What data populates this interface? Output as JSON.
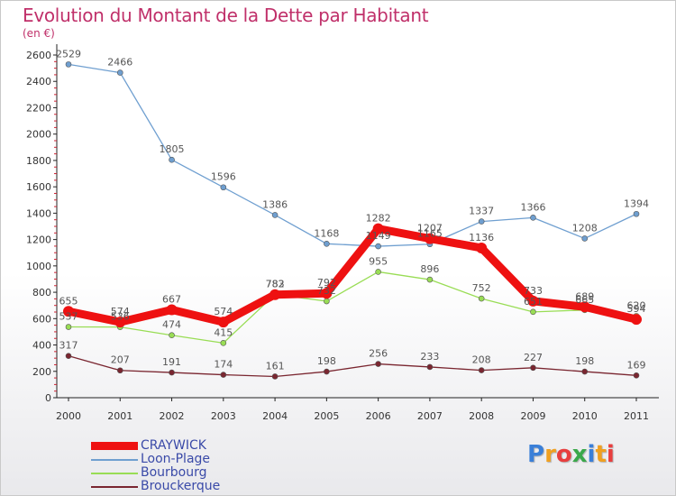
{
  "title": "Evolution du Montant de la Dette par Habitant",
  "subtitle": "(en €)",
  "chart_data": {
    "type": "line",
    "title": "Evolution du Montant de la Dette par Habitant",
    "subtitle": "(en €)",
    "xlabel": "",
    "ylabel": "",
    "x": [
      "2000",
      "2001",
      "2002",
      "2003",
      "2004",
      "2005",
      "2006",
      "2007",
      "2008",
      "2009",
      "2010",
      "2011"
    ],
    "ylim": [
      0,
      2600
    ],
    "yticks": [
      0,
      200,
      400,
      600,
      800,
      1000,
      1200,
      1400,
      1600,
      1800,
      2000,
      2200,
      2400,
      2600
    ],
    "grid": false,
    "legend_position": "bottom-left",
    "series": [
      {
        "name": "CRAYWICK",
        "color": "#ee1111",
        "values": [
          655,
          574,
          667,
          574,
          782,
          792,
          1282,
          1207,
          1136,
          733,
          689,
          594
        ]
      },
      {
        "name": "Loon-Plage",
        "color": "#6f9fd0",
        "values": [
          2529,
          2466,
          1805,
          1596,
          1386,
          1168,
          1149,
          1165,
          1337,
          1366,
          1208,
          1394
        ]
      },
      {
        "name": "Bourbourg",
        "color": "#99dd55",
        "values": [
          537,
          536,
          474,
          415,
          783,
          732,
          955,
          896,
          752,
          651,
          665,
          620
        ]
      },
      {
        "name": "Brouckerque",
        "color": "#7a2630",
        "values": [
          317,
          207,
          191,
          174,
          161,
          198,
          256,
          233,
          208,
          227,
          198,
          169
        ]
      }
    ]
  },
  "logo": {
    "text": "Proxiti",
    "letters": [
      {
        "char": "P",
        "color": "#3a7fd8"
      },
      {
        "char": "r",
        "color": "#f0a020"
      },
      {
        "char": "o",
        "color": "#e83e3e"
      },
      {
        "char": "x",
        "color": "#3aa84a"
      },
      {
        "char": "i",
        "color": "#3a7fd8"
      },
      {
        "char": "t",
        "color": "#f0a020"
      },
      {
        "char": "i",
        "color": "#e83e3e"
      }
    ]
  }
}
